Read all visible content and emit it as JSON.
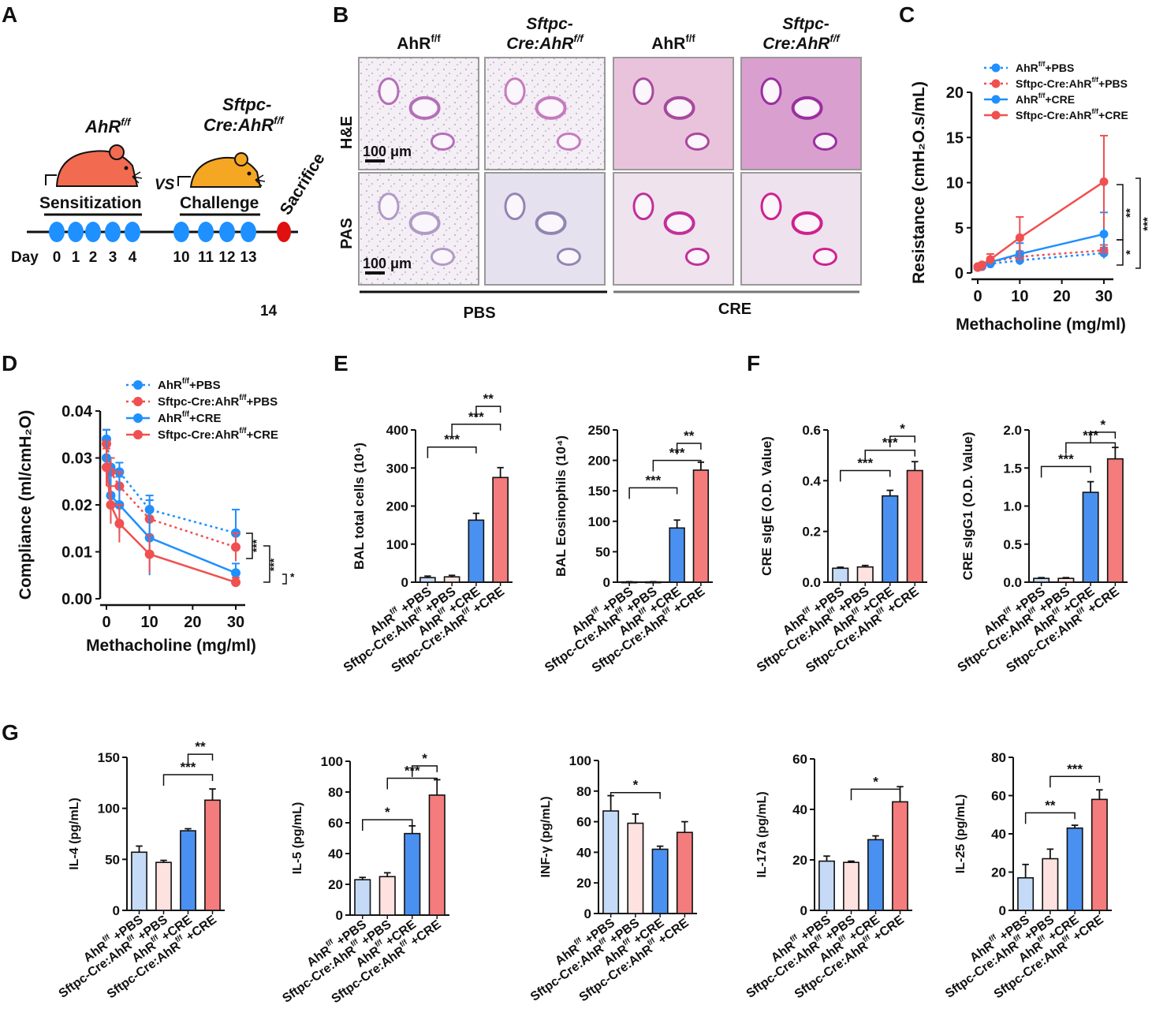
{
  "panels": {
    "A": "A",
    "B": "B",
    "C": "C",
    "D": "D",
    "E": "E",
    "F": "F",
    "G": "G"
  },
  "timeline": {
    "groups": [
      "AhR",
      "Sftpc-Cre:AhR"
    ],
    "group_sup": "f/f",
    "group2_line1": "Sftpc-",
    "group2_line2": "Cre:AhR",
    "vs": "VS",
    "sensitization": "Sensitization",
    "challenge": "Challenge",
    "sacrifice": "Sacrifice",
    "day_label": "Day",
    "sens_days": [
      "0",
      "1",
      "2",
      "3",
      "4"
    ],
    "chal_days": [
      "10",
      "11",
      "12",
      "13"
    ],
    "sacrifice_day": "14",
    "colors": {
      "dot": "#1e90ff",
      "sacrifice": "#e01010",
      "mouse1": "#f26b50",
      "mouse2": "#f5a623"
    }
  },
  "histology": {
    "col_headers": [
      {
        "line1": "",
        "line2": "AhR",
        "sup": "f/f",
        "italic": false
      },
      {
        "line1": "Sftpc-",
        "line2": "Cre:AhR",
        "sup": "f/f",
        "italic": true
      },
      {
        "line1": "",
        "line2": "AhR",
        "sup": "f/f",
        "italic": false
      },
      {
        "line1": "Sftpc-",
        "line2": "Cre:AhR",
        "sup": "f/f",
        "italic": true
      }
    ],
    "row_labels": [
      "H&E",
      "PAS"
    ],
    "scale_bar": "100 μm",
    "group_labels": [
      "PBS",
      "CRE"
    ]
  },
  "chart_data": [
    {
      "id": "C",
      "type": "line",
      "ylabel": "Resistance (cmH₂O.s/mL)",
      "xlabel": "Methacholine (mg/ml)",
      "x": [
        0,
        1,
        3,
        10,
        30
      ],
      "xticks": [
        0,
        10,
        20,
        30
      ],
      "ylim": [
        0,
        20
      ],
      "yticks": [
        0,
        5,
        10,
        15,
        20
      ],
      "legend": [
        {
          "base": "AhR",
          "sup": "f/f",
          "tail": "+PBS"
        },
        {
          "base": "Sftpc-Cre:AhR",
          "sup": "f/f",
          "tail": "+PBS"
        },
        {
          "base": "AhR",
          "sup": "f/f",
          "tail": "+CRE"
        },
        {
          "base": "Sftpc-Cre:AhR",
          "sup": "f/f",
          "tail": "+CRE"
        }
      ],
      "series": [
        {
          "values": [
            0.6,
            0.7,
            1.0,
            1.4,
            2.2
          ],
          "errors": [
            0.1,
            0.1,
            0.3,
            0.5,
            0.6
          ],
          "color": "#1e90ff",
          "dashed": true
        },
        {
          "values": [
            0.6,
            0.7,
            1.2,
            1.8,
            2.5
          ],
          "errors": [
            0.1,
            0.1,
            0.3,
            0.6,
            0.6
          ],
          "color": "#f05050",
          "dashed": true
        },
        {
          "values": [
            0.7,
            0.8,
            1.2,
            2.1,
            4.3
          ],
          "errors": [
            0.1,
            0.1,
            0.4,
            1.2,
            2.4
          ],
          "color": "#1e90ff",
          "dashed": false
        },
        {
          "values": [
            0.7,
            0.9,
            1.5,
            3.9,
            10.1
          ],
          "errors": [
            0.1,
            0.2,
            0.6,
            2.3,
            5.1
          ],
          "color": "#f05050",
          "dashed": false
        }
      ],
      "significance": [
        "**",
        "*",
        "***"
      ]
    },
    {
      "id": "D",
      "type": "line",
      "ylabel": "Compliance (ml/cmH₂O)",
      "xlabel": "Methacholine (mg/ml)",
      "x": [
        0,
        1,
        3,
        10,
        30
      ],
      "xticks": [
        0,
        10,
        20,
        30
      ],
      "ylim": [
        0,
        0.04
      ],
      "yticks": [
        0,
        0.01,
        0.02,
        0.03,
        0.04
      ],
      "yticklabels": [
        "0.00",
        "0.01",
        "0.02",
        "0.03",
        "0.04"
      ],
      "legend": [
        {
          "base": "AhR",
          "sup": "f/f",
          "tail": "+PBS"
        },
        {
          "base": "Sftpc-Cre:AhR",
          "sup": "f/f",
          "tail": "+PBS"
        },
        {
          "base": "AhR",
          "sup": "f/f",
          "tail": "+CRE"
        },
        {
          "base": "Sftpc-Cre:AhR",
          "sup": "f/f",
          "tail": "+CRE"
        }
      ],
      "series": [
        {
          "values": [
            0.034,
            0.028,
            0.027,
            0.019,
            0.014
          ],
          "errors": [
            0.002,
            0.002,
            0.002,
            0.003,
            0.005
          ],
          "color": "#1e90ff",
          "dashed": true
        },
        {
          "values": [
            0.033,
            0.027,
            0.024,
            0.017,
            0.011
          ],
          "errors": [
            0.003,
            0.003,
            0.003,
            0.004,
            0.003
          ],
          "color": "#f05050",
          "dashed": true
        },
        {
          "values": [
            0.03,
            0.022,
            0.02,
            0.013,
            0.0055
          ],
          "errors": [
            0.006,
            0.006,
            0.006,
            0.008,
            0.002
          ],
          "color": "#1e90ff",
          "dashed": false
        },
        {
          "values": [
            0.028,
            0.02,
            0.016,
            0.0095,
            0.0035
          ],
          "errors": [
            0.004,
            0.004,
            0.004,
            0.004,
            0.001
          ],
          "color": "#f05050",
          "dashed": false
        }
      ],
      "significance": [
        "***",
        "***",
        "*"
      ]
    },
    {
      "id": "E1",
      "type": "bar",
      "ylabel": "BAL total cells (10⁴)",
      "ylim": [
        0,
        400
      ],
      "yticks": [
        0,
        100,
        200,
        300,
        400
      ],
      "values": [
        12,
        14,
        163,
        275
      ],
      "errors": [
        4,
        4,
        18,
        26
      ],
      "significance": [
        "***",
        "***",
        "**"
      ]
    },
    {
      "id": "E2",
      "type": "bar",
      "ylabel": "BAL Eosinophils (10⁴)",
      "ylim": [
        0,
        250
      ],
      "yticks": [
        0,
        50,
        100,
        150,
        200,
        250
      ],
      "values": [
        0.5,
        0.5,
        89,
        184
      ],
      "errors": [
        0.3,
        0.3,
        13,
        13
      ],
      "significance": [
        "***",
        "***",
        "**"
      ]
    },
    {
      "id": "F1",
      "type": "bar",
      "ylabel": "CRE sIgE (O.D. Value)",
      "ylim": [
        0,
        0.6
      ],
      "yticks": [
        0,
        0.2,
        0.4,
        0.6
      ],
      "yticklabels": [
        "0.0",
        "0.2",
        "0.4",
        "0.6"
      ],
      "values": [
        0.055,
        0.06,
        0.34,
        0.44
      ],
      "errors": [
        0.004,
        0.006,
        0.022,
        0.035
      ],
      "significance": [
        "***",
        "***",
        "*"
      ]
    },
    {
      "id": "F2",
      "type": "bar",
      "ylabel": "CRE sIgG1 (O.D. Value)",
      "ylim": [
        0,
        2.0
      ],
      "yticks": [
        0,
        0.5,
        1.0,
        1.5,
        2.0
      ],
      "yticklabels": [
        "0.0",
        "0.5",
        "1.0",
        "1.5",
        "2.0"
      ],
      "values": [
        0.05,
        0.05,
        1.18,
        1.62
      ],
      "errors": [
        0.01,
        0.01,
        0.14,
        0.15
      ],
      "significance": [
        "***",
        "***",
        "*"
      ]
    },
    {
      "id": "G1",
      "type": "bar",
      "ylabel": "IL-4 (pg/mL)",
      "ylim": [
        0,
        150
      ],
      "yticks": [
        0,
        50,
        100,
        150
      ],
      "values": [
        57,
        47,
        78,
        108
      ],
      "errors": [
        6,
        2,
        2,
        11
      ],
      "significance": [
        "***",
        "**"
      ]
    },
    {
      "id": "G2",
      "type": "bar",
      "ylabel": "IL-5 (pg/mL)",
      "ylim": [
        0,
        100
      ],
      "yticks": [
        0,
        20,
        40,
        60,
        80,
        100
      ],
      "values": [
        23,
        25,
        53,
        78
      ],
      "errors": [
        1.5,
        2.5,
        5,
        10
      ],
      "significance": [
        "*",
        "***",
        "*"
      ]
    },
    {
      "id": "G3",
      "type": "bar",
      "ylabel": "INF-γ (pg/mL)",
      "ylim": [
        0,
        100
      ],
      "yticks": [
        0,
        20,
        40,
        60,
        80,
        100
      ],
      "values": [
        67,
        59,
        42,
        53
      ],
      "errors": [
        10,
        6,
        2,
        7
      ],
      "significance": [
        "*"
      ]
    },
    {
      "id": "G4",
      "type": "bar",
      "ylabel": "IL-17a (pg/mL)",
      "ylim": [
        0,
        60
      ],
      "yticks": [
        0,
        20,
        40,
        60
      ],
      "values": [
        19.5,
        19,
        28,
        43
      ],
      "errors": [
        2,
        0.5,
        1.5,
        6
      ],
      "significance": [
        "*"
      ]
    },
    {
      "id": "G5",
      "type": "bar",
      "ylabel": "IL-25 (pg/mL)",
      "ylim": [
        0,
        80
      ],
      "yticks": [
        0,
        20,
        40,
        60,
        80
      ],
      "values": [
        17,
        27,
        43,
        58
      ],
      "errors": [
        7,
        5,
        1.5,
        5
      ],
      "significance": [
        "**",
        "***"
      ]
    }
  ],
  "bar_categories": [
    {
      "base": "AhR",
      "sup": "f/f",
      "tail": " +PBS"
    },
    {
      "base": "Sftpc-Cre:AhR",
      "sup": "f/f",
      "tail": " +PBS"
    },
    {
      "base": "AhR",
      "sup": "f/f",
      "tail": " +CRE"
    },
    {
      "base": "Sftpc-Cre:AhR",
      "sup": "f/f",
      "tail": " +CRE"
    }
  ],
  "bar_colors": [
    "#c5daf6",
    "#fde2e0",
    "#4a90f0",
    "#f47c7c"
  ]
}
